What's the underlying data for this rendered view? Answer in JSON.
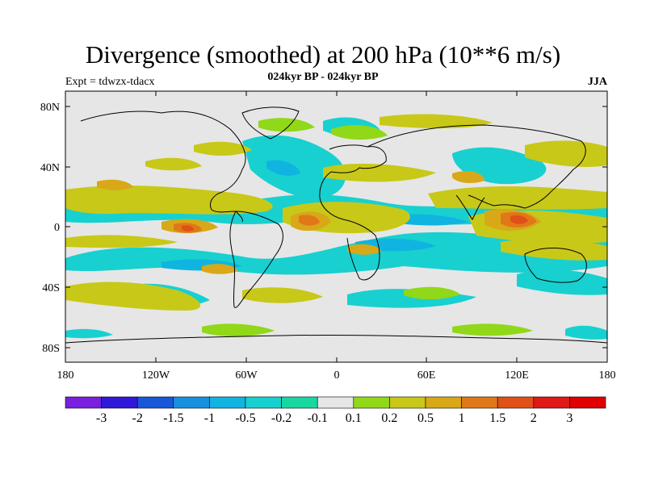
{
  "header": {
    "title": "Divergence (smoothed) at 200 hPa (10**6 m/s)",
    "subtitle": "024kyr BP - 024kyr BP",
    "experiment": "Expt = tdwzx-tdacx",
    "season": "JJA"
  },
  "axes": {
    "y_ticks": [
      "80N",
      "40N",
      "0",
      "40S",
      "80S"
    ],
    "x_ticks": [
      "180",
      "120W",
      "60W",
      "0",
      "60E",
      "120E",
      "180"
    ]
  },
  "colorbar": {
    "labels": [
      "-3",
      "-2",
      "-1.5",
      "-1",
      "-0.5",
      "-0.2",
      "-0.1",
      "0.1",
      "0.2",
      "0.5",
      "1",
      "1.5",
      "2",
      "3"
    ],
    "colors": [
      "#7a1ee0",
      "#3018d8",
      "#1858d8",
      "#1890e0",
      "#10b4e0",
      "#18d0d0",
      "#18d8a0",
      "#e6e6e6",
      "#90d818",
      "#c8c818",
      "#d8a818",
      "#e07818",
      "#e05018",
      "#e01818",
      "#e00000"
    ]
  },
  "colors": {
    "background_near_zero": "#e6e6e6",
    "coastline": "#000000"
  }
}
